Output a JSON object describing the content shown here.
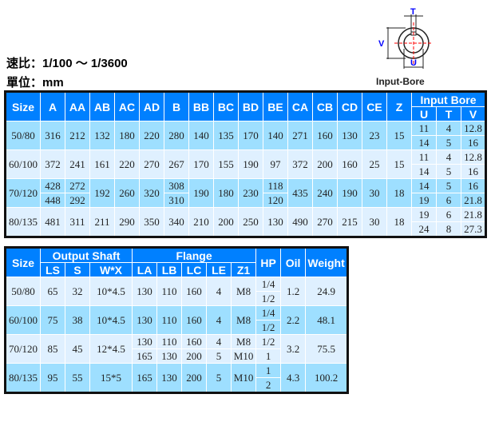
{
  "title": {
    "ratio": "速比：1/100 ～  1/3600",
    "unit": "單位：mm"
  },
  "diagram": {
    "label": "Input-Bore",
    "t": "T",
    "v": "V",
    "u": "U"
  },
  "colors": {
    "header": "#0080ff",
    "row_dark": "#9edfff",
    "row_light": "#dff0ff",
    "label": "#0000ff"
  },
  "table1": {
    "headers": [
      "Size",
      "A",
      "AA",
      "AB",
      "AC",
      "AD",
      "B",
      "BB",
      "BC",
      "BD",
      "BE",
      "CA",
      "CB",
      "CD",
      "CE",
      "Z"
    ],
    "group": "Input Bore",
    "sub": [
      "U",
      "T",
      "V"
    ],
    "rows": [
      [
        "50/80",
        "316",
        "212",
        "132",
        "180",
        "220",
        "280",
        "140",
        "135",
        "170",
        "140",
        "271",
        "160",
        "130",
        "23",
        "15",
        [
          "11",
          "14"
        ],
        [
          "4",
          "5"
        ],
        [
          "12.8",
          "16"
        ]
      ],
      [
        "60/100",
        "372",
        "241",
        "161",
        "220",
        "270",
        "267",
        "170",
        "155",
        "190",
        "97",
        "372",
        "200",
        "160",
        "25",
        "15",
        [
          "11",
          "14"
        ],
        [
          "4",
          "5"
        ],
        [
          "12.8",
          "16"
        ]
      ],
      [
        "70/120",
        [
          "428",
          "448"
        ],
        [
          "272",
          "292"
        ],
        "192",
        "260",
        "320",
        [
          "308",
          "310"
        ],
        "190",
        "180",
        "230",
        [
          "118",
          "120"
        ],
        "435",
        "240",
        "190",
        "30",
        "18",
        [
          "14",
          "19"
        ],
        [
          "5",
          "6"
        ],
        [
          "16",
          "21.8"
        ]
      ],
      [
        "80/135",
        "481",
        "311",
        "211",
        "290",
        "350",
        "340",
        "210",
        "200",
        "250",
        "130",
        "490",
        "270",
        "215",
        "30",
        "18",
        [
          "19",
          "24"
        ],
        [
          "6",
          "8"
        ],
        [
          "21.8",
          "27.3"
        ]
      ]
    ]
  },
  "table2": {
    "size": "Size",
    "group1": "Output Shaft",
    "sub1": [
      "LS",
      "S",
      "W*X"
    ],
    "group2": "Flange",
    "sub2": [
      "LA",
      "LB",
      "LC",
      "LE",
      "Z1"
    ],
    "hp": "HP",
    "oil": "Oil",
    "weight": "Weight",
    "rows": [
      [
        "50/80",
        "65",
        "32",
        "10*4.5",
        "130",
        "110",
        "160",
        "4",
        "M8",
        [
          "1/4",
          "1/2"
        ],
        "1.2",
        "24.9"
      ],
      [
        "60/100",
        "75",
        "38",
        "10*4.5",
        "130",
        "110",
        "160",
        "4",
        "M8",
        [
          "1/4",
          "1/2"
        ],
        "2.2",
        "48.1"
      ],
      [
        "70/120",
        "85",
        "45",
        "12*4.5",
        [
          "130",
          "165"
        ],
        [
          "110",
          "130"
        ],
        [
          "160",
          "200"
        ],
        [
          "4",
          "5"
        ],
        [
          "M8",
          "M10"
        ],
        [
          "1/2",
          "1"
        ],
        "3.2",
        "75.5"
      ],
      [
        "80/135",
        "95",
        "55",
        "15*5",
        "165",
        "130",
        "200",
        "5",
        "M10",
        [
          "1",
          "2"
        ],
        "4.3",
        "100.2"
      ]
    ]
  }
}
